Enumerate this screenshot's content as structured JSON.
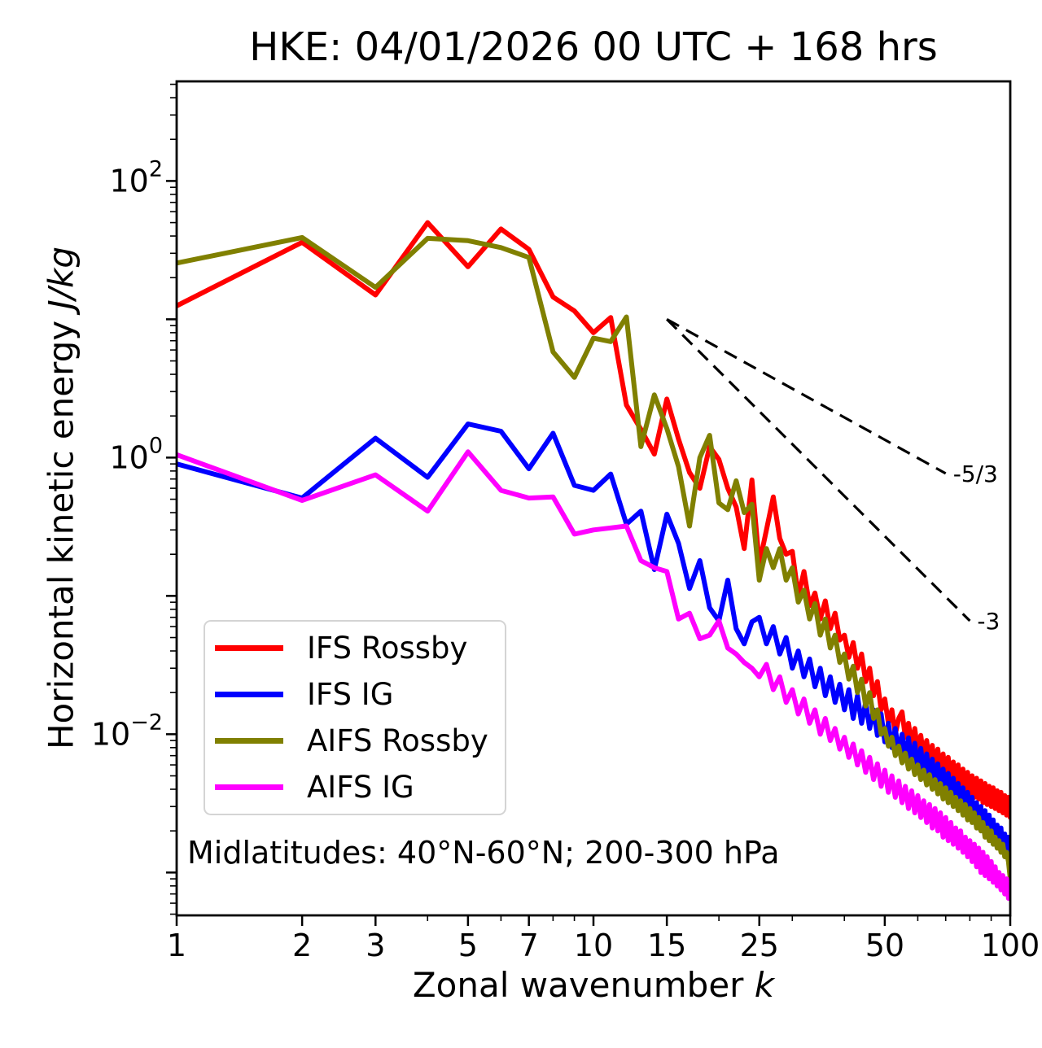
{
  "title": "HKE: 04/01/2026 00 UTC + 168 hrs",
  "chart_data": {
    "type": "line",
    "title": "HKE: 04/01/2026 00 UTC + 168 hrs",
    "xlabel": "Zonal wavenumber k",
    "xlabel_plain": "Zonal wavenumber ",
    "xlabel_italic": "k",
    "ylabel": "Horizontal kinetic energy J/kg",
    "ylabel_plain": "Horizontal kinetic energy ",
    "ylabel_italic": "J/kg",
    "x_scale": "log",
    "y_scale": "log",
    "xlim": [
      1,
      100
    ],
    "ylim": [
      0.00049,
      525
    ],
    "grid": false,
    "x_major_ticks": [
      1,
      2,
      3,
      5,
      7,
      10,
      15,
      25,
      50,
      100
    ],
    "x_minor_ticks": [
      4,
      6,
      8,
      9,
      20,
      30,
      40,
      60,
      70,
      80,
      90
    ],
    "y_major_decades": [
      2,
      1,
      0,
      -1,
      -2,
      -3
    ],
    "y_tick_labels": [
      {
        "decade": 2,
        "base": "10",
        "sup": "2"
      },
      {
        "decade": 0,
        "base": "10",
        "sup": "0"
      },
      {
        "decade": -2,
        "base": "10",
        "sup": "−2"
      }
    ],
    "annotation": "Midlatitudes: 40°N-60°N; 200-300 hPa",
    "legend": {
      "position": "lower left",
      "entries": [
        "IFS Rossby",
        "IFS IG",
        "AIFS Rossby",
        "AIFS IG"
      ]
    },
    "x": [
      1,
      2,
      3,
      4,
      5,
      6,
      7,
      8,
      9,
      10,
      11,
      12,
      13,
      14,
      15,
      16,
      17,
      18,
      19,
      20,
      21,
      22,
      23,
      24,
      25,
      26,
      27,
      28,
      29,
      30,
      31,
      32,
      33,
      34,
      35,
      36,
      37,
      38,
      39,
      40,
      41,
      42,
      43,
      44,
      45,
      46,
      47,
      48,
      49,
      50,
      51,
      52,
      53,
      54,
      55,
      56,
      57,
      58,
      59,
      60,
      61,
      62,
      63,
      64,
      65,
      66,
      67,
      68,
      69,
      70,
      71,
      72,
      73,
      74,
      75,
      76,
      77,
      78,
      79,
      80,
      81,
      82,
      83,
      84,
      85,
      86,
      87,
      88,
      89,
      90,
      91,
      92,
      93,
      94,
      95,
      96,
      97,
      98,
      99,
      100
    ],
    "series": [
      {
        "name": "IFS Rossby",
        "color": "#ff0000",
        "values": [
          12.5,
          36,
          15,
          50,
          24,
          45,
          32,
          14.5,
          11.5,
          8,
          10.3,
          2.4,
          1.6,
          1.06,
          2.65,
          1.36,
          0.78,
          0.6,
          1.2,
          0.97,
          0.6,
          0.44,
          0.22,
          0.69,
          0.17,
          0.3,
          0.52,
          0.26,
          0.2,
          0.21,
          0.1,
          0.15,
          0.085,
          0.105,
          0.068,
          0.092,
          0.058,
          0.075,
          0.048,
          0.052,
          0.036,
          0.046,
          0.03,
          0.038,
          0.024,
          0.03,
          0.019,
          0.024,
          0.015,
          0.018,
          0.012,
          0.015,
          0.01,
          0.013,
          0.0145,
          0.0095,
          0.012,
          0.0082,
          0.011,
          0.0075,
          0.0098,
          0.0068,
          0.009,
          0.0062,
          0.0083,
          0.0057,
          0.0078,
          0.0053,
          0.0072,
          0.005,
          0.0068,
          0.0046,
          0.0063,
          0.0043,
          0.006,
          0.0041,
          0.0056,
          0.0039,
          0.0053,
          0.0037,
          0.005,
          0.0035,
          0.0048,
          0.0034,
          0.0046,
          0.0032,
          0.0044,
          0.0031,
          0.0042,
          0.003,
          0.0041,
          0.0029,
          0.0039,
          0.0028,
          0.0038,
          0.0027,
          0.0036,
          0.0026,
          0.0035,
          0.0025
        ]
      },
      {
        "name": "IFS IG",
        "color": "#0000ff",
        "values": [
          0.9,
          0.51,
          1.38,
          0.72,
          1.75,
          1.55,
          0.83,
          1.5,
          0.63,
          0.58,
          0.76,
          0.33,
          0.41,
          0.155,
          0.39,
          0.24,
          0.113,
          0.18,
          0.082,
          0.066,
          0.13,
          0.058,
          0.045,
          0.065,
          0.07,
          0.045,
          0.06,
          0.038,
          0.05,
          0.03,
          0.04,
          0.026,
          0.035,
          0.022,
          0.03,
          0.019,
          0.026,
          0.017,
          0.023,
          0.015,
          0.021,
          0.013,
          0.019,
          0.012,
          0.017,
          0.011,
          0.015,
          0.0098,
          0.014,
          0.0088,
          0.012,
          0.008,
          0.011,
          0.0073,
          0.01,
          0.0067,
          0.0094,
          0.0061,
          0.0086,
          0.0056,
          0.0079,
          0.0051,
          0.0072,
          0.0047,
          0.0066,
          0.0043,
          0.0061,
          0.004,
          0.0056,
          0.0037,
          0.0052,
          0.0034,
          0.0048,
          0.0031,
          0.0044,
          0.0029,
          0.0041,
          0.0027,
          0.0038,
          0.0025,
          0.0035,
          0.0023,
          0.0032,
          0.0021,
          0.003,
          0.002,
          0.0028,
          0.0018,
          0.0026,
          0.0017,
          0.0024,
          0.0016,
          0.0022,
          0.0015,
          0.0021,
          0.0014,
          0.0019,
          0.0013,
          0.0018,
          0.0014
        ]
      },
      {
        "name": "AIFS Rossby",
        "color": "#808000",
        "values": [
          25.5,
          39,
          17,
          38.5,
          37,
          33,
          28,
          5.8,
          3.8,
          7.3,
          6.9,
          10.4,
          1.2,
          2.84,
          1.62,
          0.86,
          0.32,
          1,
          1.45,
          0.47,
          0.42,
          0.68,
          0.4,
          0.46,
          0.13,
          0.22,
          0.16,
          0.22,
          0.13,
          0.16,
          0.09,
          0.11,
          0.068,
          0.088,
          0.052,
          0.068,
          0.042,
          0.052,
          0.033,
          0.038,
          0.025,
          0.031,
          0.02,
          0.025,
          0.016,
          0.02,
          0.013,
          0.015,
          0.01,
          0.011,
          0.0082,
          0.0095,
          0.007,
          0.0082,
          0.0062,
          0.0073,
          0.0056,
          0.0066,
          0.0051,
          0.006,
          0.0047,
          0.0055,
          0.0043,
          0.0051,
          0.004,
          0.0047,
          0.0037,
          0.0044,
          0.0034,
          0.0041,
          0.0032,
          0.0038,
          0.003,
          0.0035,
          0.0028,
          0.0033,
          0.0026,
          0.0031,
          0.0024,
          0.0029,
          0.0023,
          0.0027,
          0.0021,
          0.0025,
          0.002,
          0.0023,
          0.0018,
          0.0021,
          0.0017,
          0.002,
          0.0016,
          0.0018,
          0.0015,
          0.0017,
          0.0014,
          0.0016,
          0.0013,
          0.0014,
          0.0012,
          0.0009
        ]
      },
      {
        "name": "AIFS IG",
        "color": "#ff00ff",
        "values": [
          1.05,
          0.49,
          0.75,
          0.41,
          1.1,
          0.58,
          0.51,
          0.52,
          0.28,
          0.3,
          0.31,
          0.32,
          0.18,
          0.16,
          0.15,
          0.068,
          0.075,
          0.049,
          0.052,
          0.066,
          0.042,
          0.038,
          0.033,
          0.03,
          0.026,
          0.032,
          0.021,
          0.026,
          0.017,
          0.021,
          0.014,
          0.018,
          0.012,
          0.015,
          0.01,
          0.013,
          0.009,
          0.011,
          0.0078,
          0.0095,
          0.0068,
          0.0085,
          0.006,
          0.0076,
          0.0053,
          0.0068,
          0.0047,
          0.0061,
          0.0042,
          0.0055,
          0.0038,
          0.005,
          0.0035,
          0.0046,
          0.0032,
          0.0042,
          0.0029,
          0.0039,
          0.0027,
          0.0036,
          0.0025,
          0.0033,
          0.0023,
          0.0031,
          0.0021,
          0.0029,
          0.002,
          0.0027,
          0.0018,
          0.0025,
          0.0017,
          0.0023,
          0.0016,
          0.0021,
          0.0015,
          0.002,
          0.0014,
          0.0018,
          0.0013,
          0.0017,
          0.0012,
          0.0016,
          0.0011,
          0.0015,
          0.001,
          0.0014,
          0.00095,
          0.0013,
          0.0009,
          0.0012,
          0.00085,
          0.0011,
          0.0008,
          0.001,
          0.00075,
          0.00095,
          0.0007,
          0.0009,
          0.00065,
          0.0008
        ]
      }
    ],
    "reference_lines": [
      {
        "label": "-5/3",
        "x": [
          15,
          70
        ],
        "y": [
          10,
          0.768
        ]
      },
      {
        "label": "-3",
        "x": [
          15,
          80
        ],
        "y": [
          10,
          0.066
        ]
      }
    ]
  }
}
